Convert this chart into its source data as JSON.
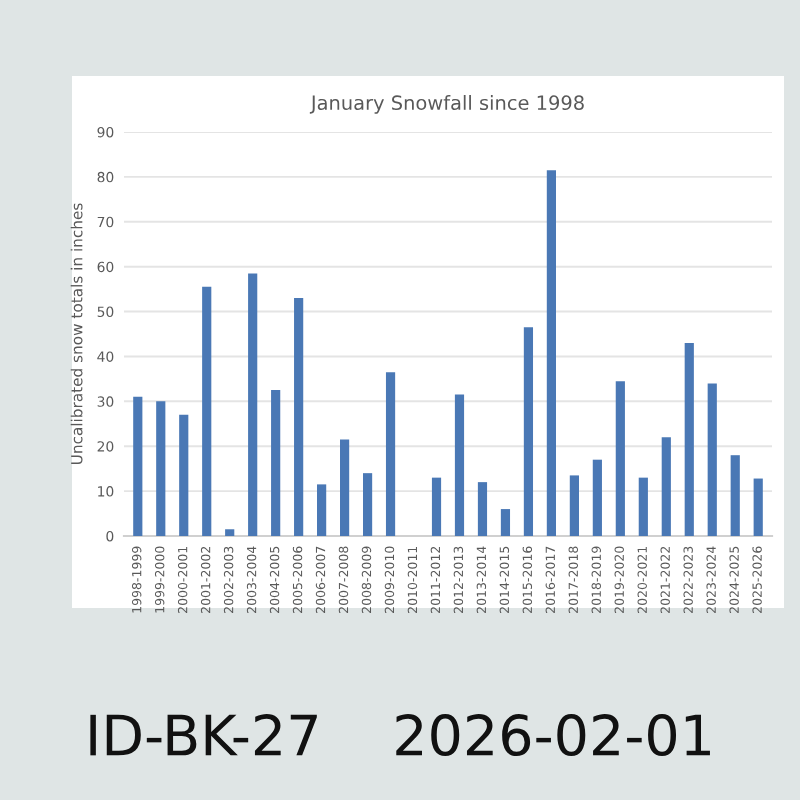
{
  "chart_data": {
    "type": "bar",
    "title": "January Snowfall since 1998",
    "ylabel": "Uncalibrated snow totals in inches",
    "categories": [
      "1998-1999",
      "1999-2000",
      "2000-2001",
      "2001-2002",
      "2002-2003",
      "2003-2004",
      "2004-2005",
      "2005-2006",
      "2006-2007",
      "2007-2008",
      "2008-2009",
      "2009-2010",
      "2010-2011",
      "2011-2012",
      "2012-2013",
      "2013-2014",
      "2014-2015",
      "2015-2016",
      "2016-2017",
      "2017-2018",
      "2018-2019",
      "2019-2020",
      "2020-2021",
      "2021-2022",
      "2022-2023",
      "2023-2024",
      "2024-2025",
      "2025-2026"
    ],
    "values": [
      31,
      30,
      27,
      55.5,
      1.5,
      58.5,
      32.5,
      53,
      11.5,
      21.5,
      14,
      36.5,
      0,
      13,
      31.5,
      12,
      6,
      46.5,
      81.5,
      13.5,
      17,
      34.5,
      13,
      22,
      43,
      34,
      18,
      12.8
    ],
    "color": "#4a78b5",
    "ylim": [
      0,
      90
    ],
    "yticks": [
      0,
      10,
      20,
      30,
      40,
      50,
      60,
      70,
      80,
      90
    ],
    "grid": "y",
    "legend": false,
    "annotations": [
      "ID-BK-27    2026-02-01"
    ]
  }
}
